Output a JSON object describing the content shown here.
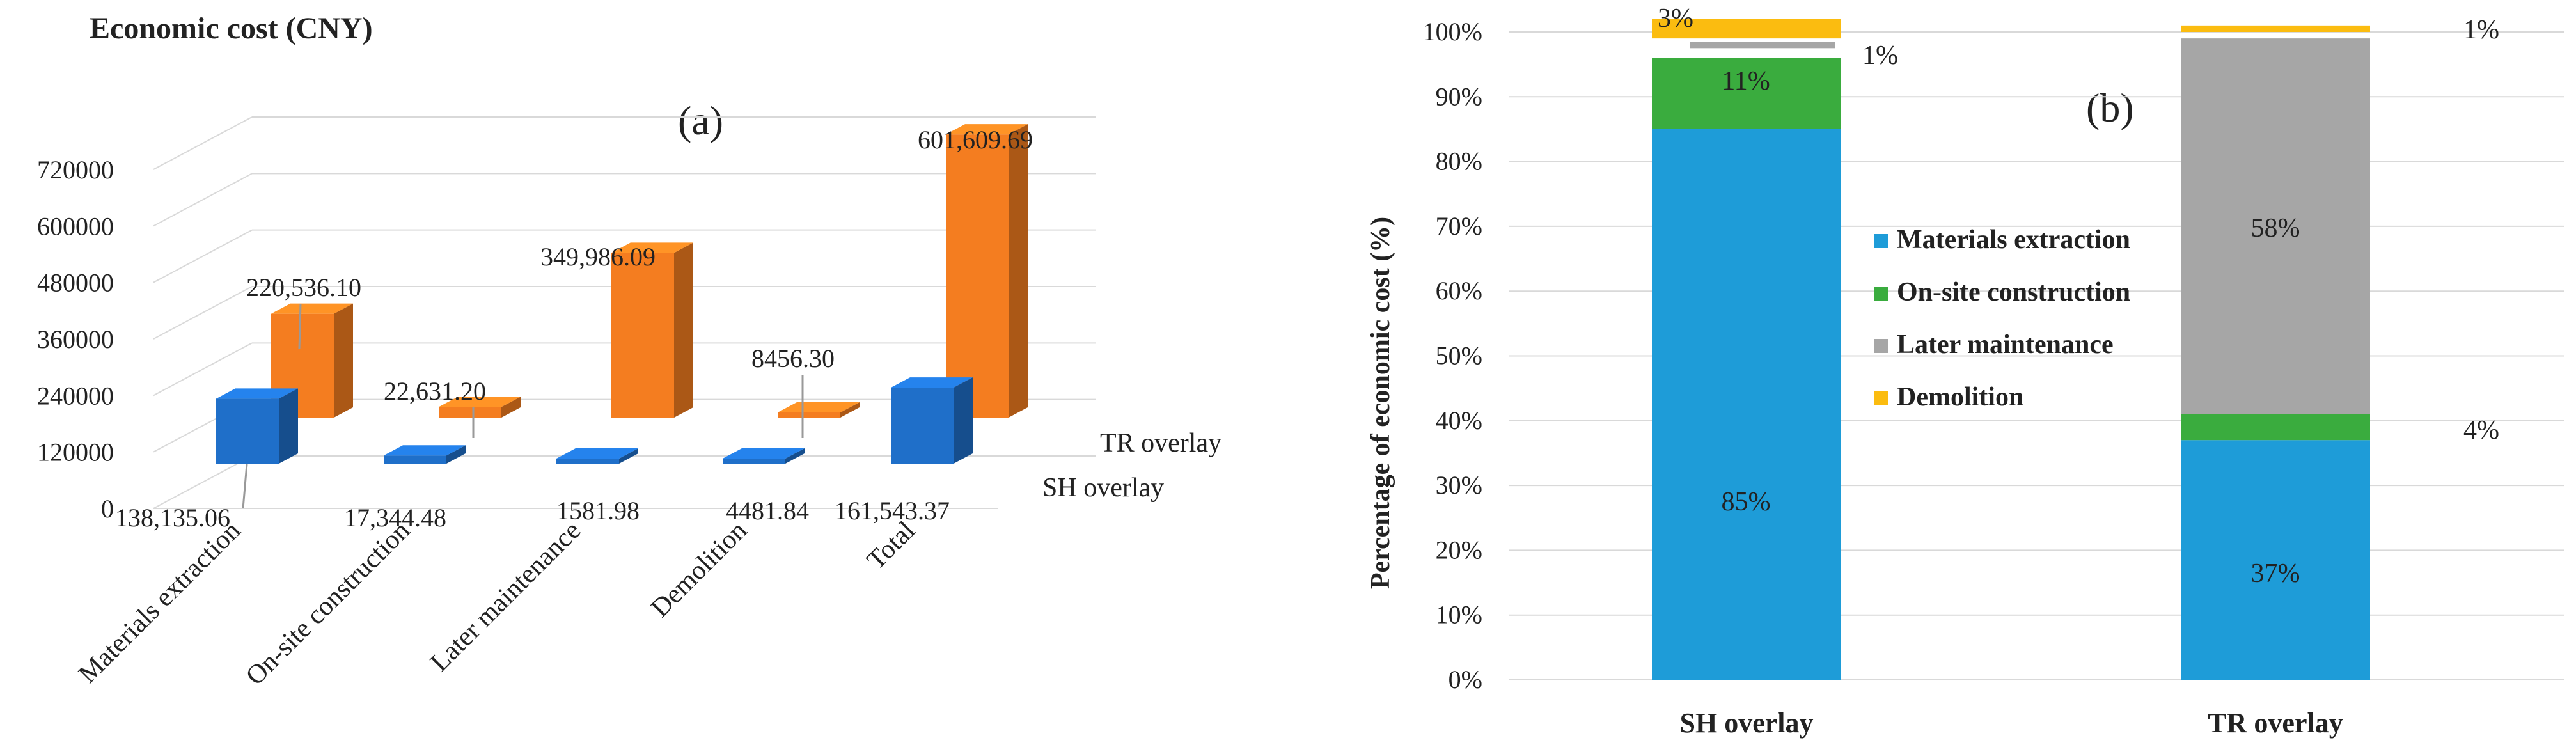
{
  "chart_data": [
    {
      "type": "bar",
      "subtype": "3d-grouped",
      "title": "Economic cost (CNY)",
      "panel_label": "(a)",
      "categories": [
        "Materials extraction",
        "On-site construction",
        "Later maintenance",
        "Demolition",
        "Total"
      ],
      "yticks": [
        "0",
        "120000",
        "240000",
        "360000",
        "480000",
        "600000",
        "720000"
      ],
      "ylim": [
        0,
        720000
      ],
      "series": [
        {
          "name": "SH overlay",
          "color": "#1f6fc9",
          "values": [
            138135.06,
            17344.48,
            1581.98,
            4481.84,
            161543.37
          ],
          "labels": [
            "138,135.06",
            "17,344.48",
            "1581.98",
            "4481.84",
            "161,543.37"
          ]
        },
        {
          "name": "TR overlay",
          "color": "#f47d20",
          "values": [
            220536.1,
            22631.2,
            349986.09,
            8456.3,
            601609.69
          ],
          "labels": [
            "220,536.10",
            "22,631.20",
            "349,986.09",
            "8456.30",
            "601,609.69"
          ]
        }
      ]
    },
    {
      "type": "bar",
      "subtype": "stacked-percent",
      "panel_label": "(b)",
      "ylabel": "Percentage of economic cost (%)",
      "yticks": [
        "0%",
        "10%",
        "20%",
        "30%",
        "40%",
        "50%",
        "60%",
        "70%",
        "80%",
        "90%",
        "100%"
      ],
      "ylim": [
        0,
        100
      ],
      "categories": [
        "SH overlay",
        "TR overlay"
      ],
      "series": [
        {
          "name": "Materials extraction",
          "color": "#1e9cd8",
          "values": [
            85,
            37
          ],
          "labels": [
            "85%",
            "37%"
          ]
        },
        {
          "name": "On-site construction",
          "color": "#3aac3e",
          "values": [
            11,
            4
          ],
          "labels": [
            "11%",
            "4%"
          ]
        },
        {
          "name": "Later maintenance",
          "color": "#a6a6a6",
          "values": [
            1,
            58
          ],
          "labels": [
            "1%",
            "58%"
          ]
        },
        {
          "name": "Demolition",
          "color": "#fbbc10",
          "values": [
            3,
            1
          ],
          "labels": [
            "3%",
            "1%"
          ]
        }
      ]
    }
  ]
}
